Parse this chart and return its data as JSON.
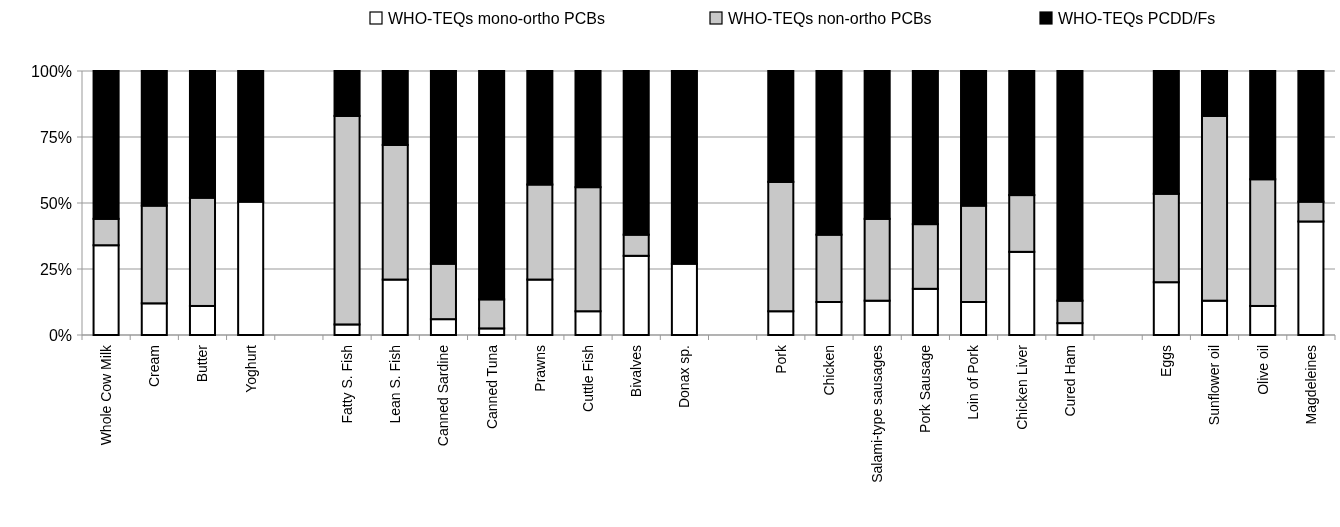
{
  "chart_data": {
    "type": "bar",
    "stacked": true,
    "categories": [
      "Whole Cow Milk",
      "Cream",
      "Butter",
      "Yoghurt",
      null,
      "Fatty S. Fish",
      "Lean S. Fish",
      "Canned Sardine",
      "Canned Tuna",
      "Prawns",
      "Cuttle Fish",
      "Bivalves",
      "Donax sp.",
      null,
      "Pork",
      "Chicken",
      "Salami-type sausages",
      "Pork Sausage",
      "Loin of Pork",
      "Chicken Liver",
      "Cured Ham",
      null,
      "Eggs",
      "Sunflower oil",
      "Olive oil",
      "Magdeleines"
    ],
    "series": [
      {
        "name": "WHO-TEQs mono-ortho PCBs",
        "color": "#ffffff",
        "values": [
          34,
          12,
          11,
          50.5,
          null,
          4,
          21,
          6,
          2.5,
          21,
          9,
          30,
          27,
          null,
          9,
          12.5,
          13,
          17.5,
          12.5,
          31.5,
          4.5,
          null,
          20,
          13,
          11,
          43
        ]
      },
      {
        "name": "WHO-TEQs non-ortho PCBs",
        "color": "#c8c8c8",
        "values": [
          10,
          37,
          41,
          0,
          null,
          79,
          51,
          21,
          11,
          36,
          47,
          8,
          0,
          null,
          49,
          25.5,
          31,
          24.5,
          36.5,
          21.5,
          8.5,
          null,
          33.5,
          70,
          48,
          7.5
        ]
      },
      {
        "name": "WHO-TEQs PCDD/Fs",
        "color": "#000000",
        "values": [
          56,
          51,
          48,
          49.5,
          null,
          17,
          28,
          73,
          86.5,
          43,
          44,
          62,
          73,
          null,
          42,
          62,
          56,
          58,
          51,
          47,
          87,
          null,
          46.5,
          17,
          41,
          49.5
        ]
      }
    ],
    "ylim": [
      0,
      100
    ],
    "yticks": [
      {
        "value": 0,
        "label": "0%"
      },
      {
        "value": 25,
        "label": "25%"
      },
      {
        "value": 50,
        "label": "50%"
      },
      {
        "value": 75,
        "label": "75%"
      },
      {
        "value": 100,
        "label": "100%"
      }
    ],
    "grid": "y",
    "legend": "top"
  }
}
